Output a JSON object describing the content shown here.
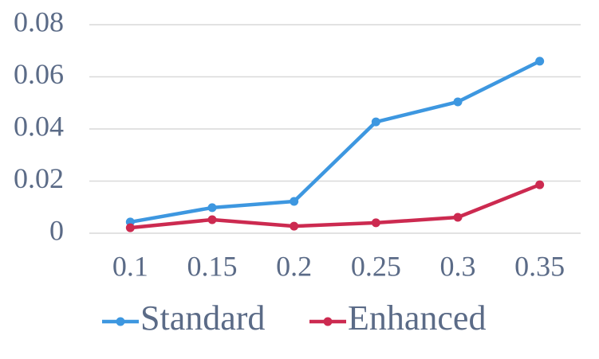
{
  "chart_data": {
    "type": "line",
    "categories": [
      "0.1",
      "0.15",
      "0.2",
      "0.25",
      "0.3",
      "0.35"
    ],
    "series": [
      {
        "name": "Standard",
        "color": "#3d97e0",
        "values": [
          0.0043,
          0.0098,
          0.0122,
          0.0427,
          0.0504,
          0.066
        ]
      },
      {
        "name": "Enhanced",
        "color": "#cc2a50",
        "values": [
          0.0021,
          0.0052,
          0.0027,
          0.004,
          0.0061,
          0.0186
        ]
      }
    ],
    "ylim": [
      0,
      0.08
    ],
    "yticks": [
      0,
      0.02,
      0.04,
      0.06,
      0.08
    ],
    "grid": true,
    "legend": "bottom"
  }
}
